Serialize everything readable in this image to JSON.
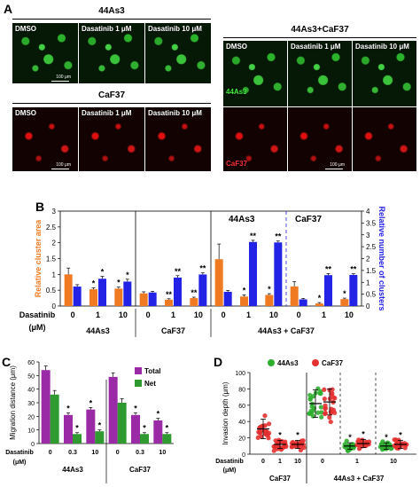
{
  "panelA": {
    "letter": "A",
    "left_title": "44As3",
    "caf_title": "CaF37",
    "right_title": "44As3+CaF37",
    "labels": [
      "DMSO",
      "Dasatinib 1 μM",
      "Dasatinib 10 μM"
    ],
    "scale": "100 μm",
    "overlay_green": "44As3",
    "overlay_red": "CaF37"
  },
  "panelB": {
    "letter": "B",
    "chart_data": {
      "type": "bar",
      "y_left_label": "Relative cluster area",
      "y_right_label": "Relative number of clusters",
      "y_left_ticks": [
        "0",
        "0.5",
        "1",
        "1.5",
        "2",
        "2.5",
        "3"
      ],
      "y_right_ticks": [
        "0",
        "0.5",
        "1",
        "1.5",
        "2",
        "2.5",
        "3",
        "3.5",
        "4"
      ],
      "ylim_left": [
        0,
        3
      ],
      "ylim_right": [
        0,
        4
      ],
      "x_title": "Dasatinib",
      "x_unit": "(μM)",
      "categories": [
        "0",
        "1",
        "10",
        "0",
        "1",
        "10",
        "0",
        "1",
        "10",
        "0",
        "1",
        "10"
      ],
      "groups": [
        "44As3",
        "CaF37",
        "44As3 + CaF37"
      ],
      "inset_groups": [
        "44As3",
        "CaF37"
      ],
      "series": [
        {
          "axis": "left",
          "color": "#f07a22",
          "values": [
            1.0,
            0.53,
            0.55,
            0.4,
            0.2,
            0.25,
            1.48,
            0.3,
            0.35,
            0.62,
            0.08,
            0.22
          ],
          "errors": [
            0.2,
            0.05,
            0.05,
            0.05,
            0.03,
            0.03,
            0.48,
            0.05,
            0.04,
            0.15,
            0.03,
            0.03
          ],
          "stars": [
            "",
            "*",
            "*",
            "",
            "**",
            "**",
            "",
            "*",
            "*",
            "",
            "*",
            "*"
          ]
        },
        {
          "axis": "right",
          "color": "#2323e6",
          "values": [
            0.82,
            1.15,
            1.03,
            0.57,
            1.2,
            1.33,
            0.6,
            2.7,
            2.68,
            0.28,
            1.3,
            1.31
          ],
          "errors": [
            0.08,
            0.1,
            0.1,
            0.05,
            0.08,
            0.07,
            0.06,
            0.07,
            0.06,
            0.04,
            0.07,
            0.05
          ],
          "stars": [
            "",
            "*",
            "*",
            "",
            "**",
            "**",
            "",
            "**",
            "**",
            "",
            "**",
            "**"
          ]
        }
      ]
    }
  },
  "panelC": {
    "letter": "C",
    "chart_data": {
      "type": "bar",
      "ylabel": "Migration distance (μm)",
      "y_ticks": [
        "0",
        "10",
        "20",
        "30",
        "40",
        "50",
        "60"
      ],
      "ylim": [
        0,
        60
      ],
      "x_title": "Dasatinib",
      "x_unit": "(μM)",
      "categories": [
        "0",
        "0.3",
        "10",
        "0",
        "0.3",
        "10"
      ],
      "groups": [
        "44As3",
        "CaF37"
      ],
      "series": [
        {
          "name": "Total",
          "color": "#9b2aa6",
          "values": [
            54,
            21,
            25,
            49,
            21,
            17
          ],
          "errors": [
            3,
            1.5,
            1.5,
            3,
            1.5,
            1.5
          ],
          "stars": [
            "",
            "*",
            "*",
            "",
            "*",
            "*"
          ]
        },
        {
          "name": "Net",
          "color": "#2f9a2f",
          "values": [
            36,
            7,
            9,
            30,
            7,
            7
          ],
          "errors": [
            3,
            1,
            1,
            3,
            1,
            1
          ],
          "stars": [
            "",
            "*",
            "*",
            "",
            "*",
            "*"
          ]
        }
      ]
    }
  },
  "panelD": {
    "letter": "D",
    "chart_data": {
      "type": "scatter",
      "ylabel": "Invasion depth (μm)",
      "y_ticks": [
        "0",
        "20",
        "40",
        "60",
        "80",
        "100"
      ],
      "ylim": [
        0,
        100
      ],
      "x_title": "Dasatinib",
      "x_unit": "(μM)",
      "categories": [
        "0",
        "1",
        "10",
        "0",
        "1",
        "10"
      ],
      "groups": [
        "CaF37",
        "44As3 + CaF37"
      ],
      "legend": [
        "44As3",
        "CaF37"
      ],
      "legend_colors": [
        "#2fae2f",
        "#e43030"
      ],
      "means": [
        31,
        12,
        12,
        62,
        10,
        10,
        64,
        13,
        12
      ],
      "sds": [
        12,
        5,
        5,
        17,
        4,
        4,
        16,
        5,
        5
      ],
      "stars": [
        "",
        "*",
        "*",
        "",
        "*",
        "*",
        "",
        "*",
        "*"
      ]
    }
  }
}
